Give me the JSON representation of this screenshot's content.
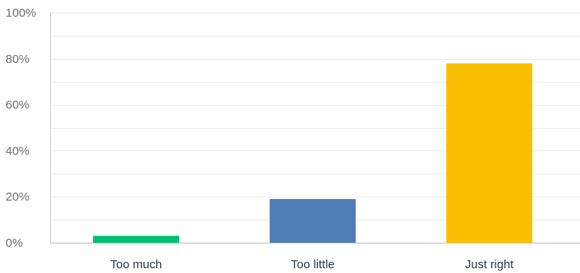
{
  "chart_data": {
    "type": "bar",
    "title": "",
    "xlabel": "",
    "ylabel": "",
    "categories": [
      "Too much",
      "Too little",
      "Just right"
    ],
    "values": [
      3,
      19,
      78
    ],
    "bar_colors": [
      "#00bf6f",
      "#507cb6",
      "#f9be00"
    ],
    "ylim": [
      0,
      100
    ],
    "yticks": [
      0,
      20,
      40,
      60,
      80,
      100
    ],
    "ytick_labels": [
      "0%",
      "20%",
      "40%",
      "60%",
      "80%",
      "100%"
    ],
    "grid": true,
    "minor_grid": true,
    "legend": "none",
    "colors": {
      "grid": "#ececec",
      "axis": "#cfcfcf",
      "tick_text": "#6f7277",
      "category_text": "#333e48"
    }
  }
}
